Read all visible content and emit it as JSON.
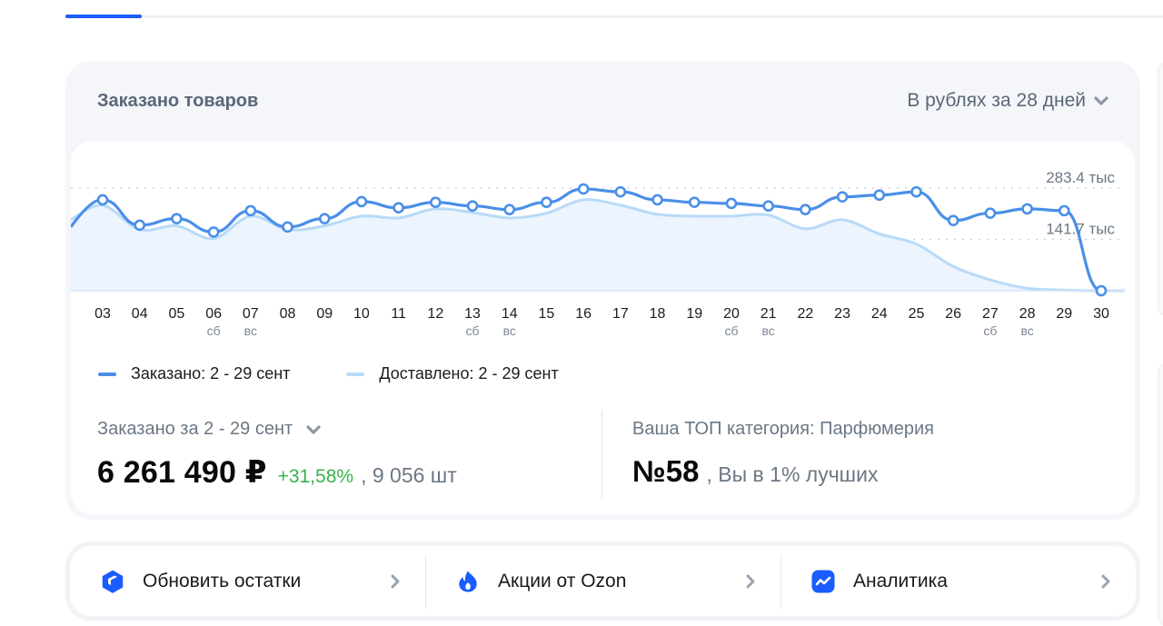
{
  "tabs": {
    "active_index": 0
  },
  "card": {
    "title": "Заказано товаров",
    "period_select": {
      "label": "В рублях за 28 дней",
      "icon": "chevron-down-icon"
    }
  },
  "chart_data": {
    "type": "line",
    "title": "Заказано товаров",
    "xlabel": "",
    "ylabel": "Рубли",
    "y_ticks": [
      {
        "value": 283.4,
        "label": "283.4 тыс"
      },
      {
        "value": 141.7,
        "label": "141.7 тыс"
      }
    ],
    "ylim": [
      0,
      283.4
    ],
    "unit": "тыс ₽",
    "grid": "dotted horizontal",
    "legend_position": "bottom-left",
    "categories": [
      "03",
      "04",
      "05",
      "06",
      "07",
      "08",
      "09",
      "10",
      "11",
      "12",
      "13",
      "14",
      "15",
      "16",
      "17",
      "18",
      "19",
      "20",
      "21",
      "22",
      "23",
      "24",
      "25",
      "26",
      "27",
      "28",
      "29",
      "30"
    ],
    "weekday_labels": {
      "06": "сб",
      "07": "вс",
      "13": "сб",
      "14": "вс",
      "20": "сб",
      "21": "вс",
      "27": "сб",
      "28": "вс"
    },
    "series": [
      {
        "name": "Заказано: 2 - 29 сент",
        "color": "#4a8fe8",
        "style": "line-with-markers",
        "values": [
          251,
          181,
          199,
          162,
          221,
          176,
          199,
          246,
          229,
          244,
          234,
          224,
          244,
          281,
          273,
          251,
          244,
          241,
          234,
          224,
          259,
          264,
          273,
          194,
          214,
          226,
          221,
          0
        ]
      },
      {
        "name": "Доставлено: 2 - 29 сент",
        "color": "#b8daf8",
        "style": "smooth-area",
        "values": [
          236,
          169,
          179,
          144,
          206,
          169,
          179,
          206,
          201,
          226,
          216,
          201,
          214,
          251,
          236,
          211,
          206,
          206,
          209,
          171,
          196,
          157,
          129,
          67,
          30,
          7,
          2,
          0
        ]
      }
    ]
  },
  "legend": [
    {
      "label": "Заказано: 2 - 29 сент",
      "color": "#4a8fe8"
    },
    {
      "label": "Доставлено: 2 - 29 сент",
      "color": "#b8daf8"
    }
  ],
  "summary": {
    "label": "Заказано за 2 - 29 сент",
    "amount": "6 261 490 ₽",
    "growth": "+31,58%",
    "pieces": ", 9 056 шт",
    "growth_color": "#38b24a"
  },
  "top_category": {
    "label": "Ваша ТОП категория: Парфюмерия",
    "rank": "№58",
    "note": ", Вы в 1% лучших"
  },
  "actions": [
    {
      "label": "Обновить остатки",
      "icon": "box-icon"
    },
    {
      "label": "Акции от Ozon",
      "icon": "fire-icon"
    },
    {
      "label": "Аналитика",
      "icon": "analytics-icon"
    }
  ],
  "colors": {
    "accent": "#1a5cff",
    "line": "#4a8fe8",
    "area": "#b8daf8"
  }
}
